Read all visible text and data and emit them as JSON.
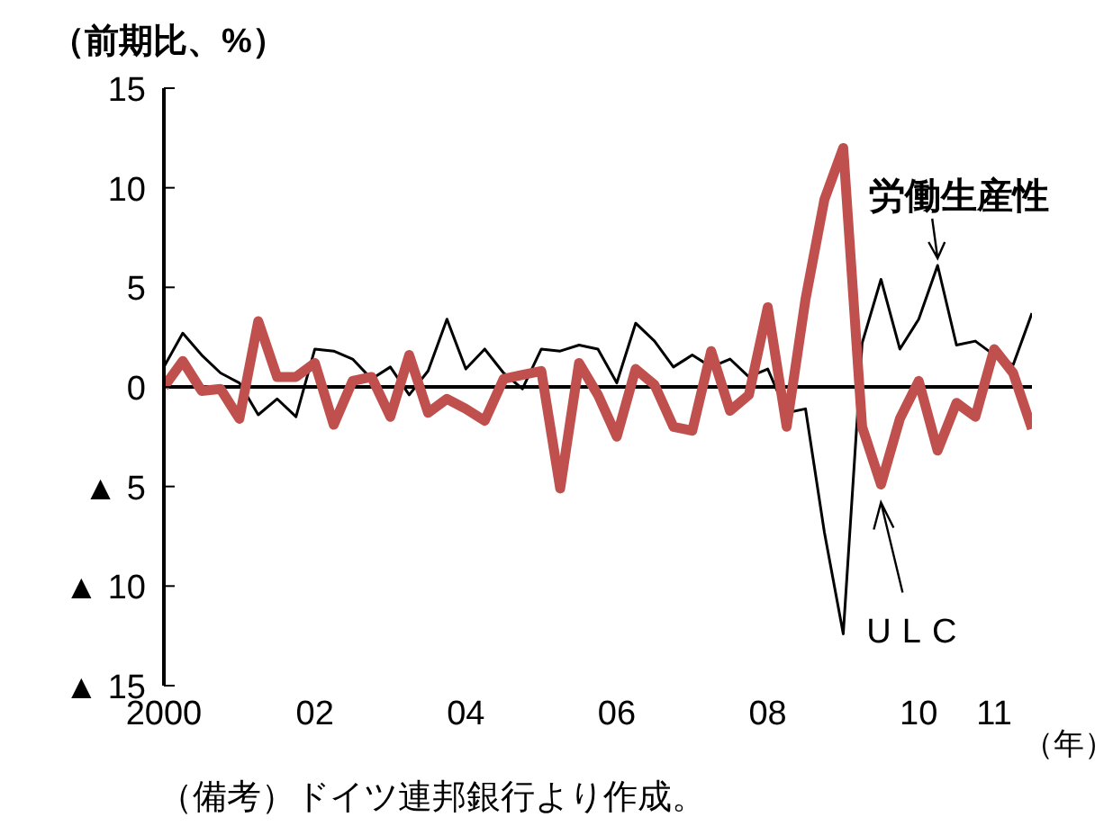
{
  "chart_data": {
    "type": "line",
    "ylabel": "（前期比、%）",
    "xlabel": "（年）",
    "annotations": [
      "（備考）ドイツ連邦銀行より作成。"
    ],
    "categories": [
      "2000",
      null,
      null,
      null,
      null,
      null,
      null,
      null,
      "02",
      null,
      null,
      null,
      null,
      null,
      null,
      null,
      "04",
      null,
      null,
      null,
      null,
      null,
      null,
      null,
      "06",
      null,
      null,
      null,
      null,
      null,
      null,
      null,
      "08",
      null,
      null,
      null,
      null,
      null,
      null,
      null,
      "10",
      null,
      null,
      null,
      "11",
      null,
      null
    ],
    "series": [
      {
        "name": "労働生産性",
        "color": "#000000",
        "values": [
          1.0,
          2.7,
          1.6,
          0.7,
          0.2,
          -1.4,
          -0.6,
          -1.5,
          1.9,
          1.8,
          1.4,
          0.4,
          1.0,
          -0.4,
          0.8,
          3.4,
          0.9,
          1.9,
          0.7,
          -0.1,
          1.9,
          1.8,
          2.1,
          1.9,
          0.2,
          3.2,
          2.3,
          1.0,
          1.6,
          1.0,
          1.4,
          0.5,
          0.9,
          -1.3,
          -1.1,
          -7.3,
          -12.4,
          2.2,
          5.4,
          1.9,
          3.4,
          6.1,
          2.1,
          2.3,
          1.6,
          1.1,
          3.7
        ]
      },
      {
        "name": "ULC",
        "color": "#c0504d",
        "values": [
          0.0,
          1.3,
          -0.2,
          -0.1,
          -1.6,
          3.3,
          0.5,
          0.5,
          1.2,
          -1.9,
          0.3,
          0.5,
          -1.5,
          1.6,
          -1.3,
          -0.6,
          -1.1,
          -1.7,
          0.4,
          0.6,
          0.8,
          -5.1,
          1.2,
          -0.4,
          -2.5,
          0.9,
          0.1,
          -2.0,
          -2.2,
          1.8,
          -1.2,
          -0.4,
          4.0,
          -2.0,
          4.4,
          9.4,
          12.0,
          -2.0,
          -4.9,
          -1.6,
          0.3,
          -3.2,
          -0.8,
          -1.5,
          1.9,
          0.7,
          -2.1
        ]
      }
    ],
    "ylim": [
      -15,
      15
    ],
    "yticks": [
      {
        "value": -15,
        "label": "▲ 15"
      },
      {
        "value": -10,
        "label": "▲ 10"
      },
      {
        "value": -5,
        "label": "▲ 5"
      },
      0,
      5,
      10,
      15
    ],
    "ref_lines": [
      {
        "axis": "y",
        "value": 0,
        "color": "#000000"
      }
    ],
    "marker": "none",
    "line_style": "solid"
  }
}
